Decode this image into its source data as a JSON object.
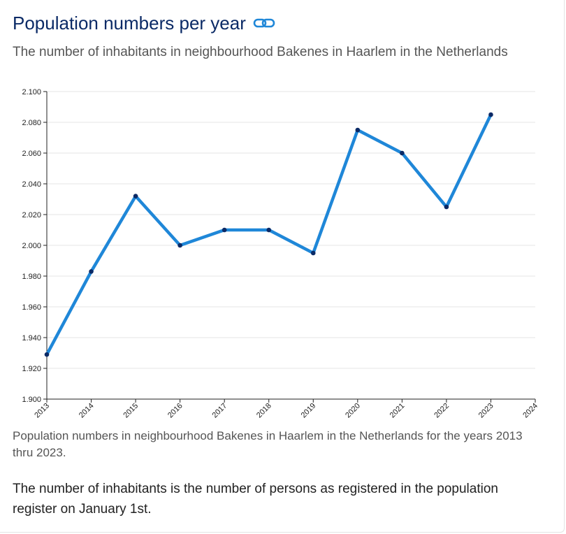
{
  "header": {
    "title": "Population numbers per year",
    "subtitle": "The number of inhabitants in neighbourhood Bakenes in Haarlem in the Netherlands"
  },
  "colors": {
    "title": "#0b2a66",
    "line": "#1f87d8",
    "point": "#0b2a66",
    "link_icon": "#1f87d8",
    "grid": "#e6e6e6"
  },
  "icons": {
    "title_link": "link-icon"
  },
  "chart_data": {
    "type": "line",
    "title": "",
    "xlabel": "",
    "ylabel": "",
    "x": [
      2013,
      2014,
      2015,
      2016,
      2017,
      2018,
      2019,
      2020,
      2021,
      2022,
      2023
    ],
    "series": [
      {
        "values": [
          1929,
          1983,
          2032,
          2000,
          2010,
          2010,
          1995,
          2075,
          2060,
          2025,
          2085
        ]
      }
    ],
    "xlim": [
      2013,
      2024
    ],
    "ylim": [
      1900,
      2100
    ],
    "x_ticks": [
      "2013",
      "2014",
      "2015",
      "2016",
      "2017",
      "2018",
      "2019",
      "2020",
      "2021",
      "2022",
      "2023",
      "2024"
    ],
    "y_ticks": [
      "1.900",
      "1.920",
      "1.940",
      "1.960",
      "1.980",
      "2.000",
      "2.020",
      "2.040",
      "2.060",
      "2.080",
      "2.100"
    ],
    "grid": true,
    "legend": "none"
  },
  "caption": "Population numbers in neighbourhood Bakenes in Haarlem in the Netherlands for the years 2013 thru 2023.",
  "note": "The number of inhabitants is the number of persons as registered in the population register on January 1st."
}
